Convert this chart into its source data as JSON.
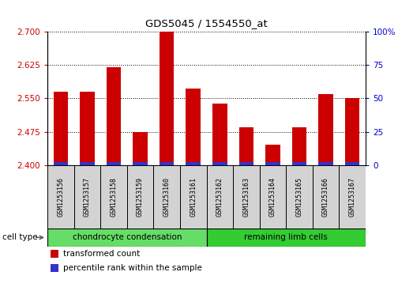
{
  "title": "GDS5045 / 1554550_at",
  "samples": [
    "GSM1253156",
    "GSM1253157",
    "GSM1253158",
    "GSM1253159",
    "GSM1253160",
    "GSM1253161",
    "GSM1253162",
    "GSM1253163",
    "GSM1253164",
    "GSM1253165",
    "GSM1253166",
    "GSM1253167"
  ],
  "transformed_count": [
    2.565,
    2.565,
    2.62,
    2.475,
    2.7,
    2.572,
    2.538,
    2.484,
    2.445,
    2.484,
    2.56,
    2.55
  ],
  "ylim_left": [
    2.4,
    2.7
  ],
  "ylim_right": [
    0,
    100
  ],
  "yticks_left": [
    2.4,
    2.475,
    2.55,
    2.625,
    2.7
  ],
  "yticks_right": [
    0,
    25,
    50,
    75,
    100
  ],
  "bar_color_red": "#cc0000",
  "bar_color_blue": "#3333cc",
  "groups": [
    {
      "label": "chondrocyte condensation",
      "indices": [
        0,
        1,
        2,
        3,
        4,
        5
      ],
      "color": "#66dd66"
    },
    {
      "label": "remaining limb cells",
      "indices": [
        6,
        7,
        8,
        9,
        10,
        11
      ],
      "color": "#33cc33"
    }
  ],
  "cell_type_label": "cell type",
  "legend_red_label": "transformed count",
  "legend_blue_label": "percentile rank within the sample",
  "bar_width": 0.55,
  "background_color": "#ffffff",
  "plot_bg_color": "#ffffff",
  "sample_box_color": "#d3d3d3",
  "right_tick_color": "#0000cc",
  "left_tick_color": "#cc0000"
}
